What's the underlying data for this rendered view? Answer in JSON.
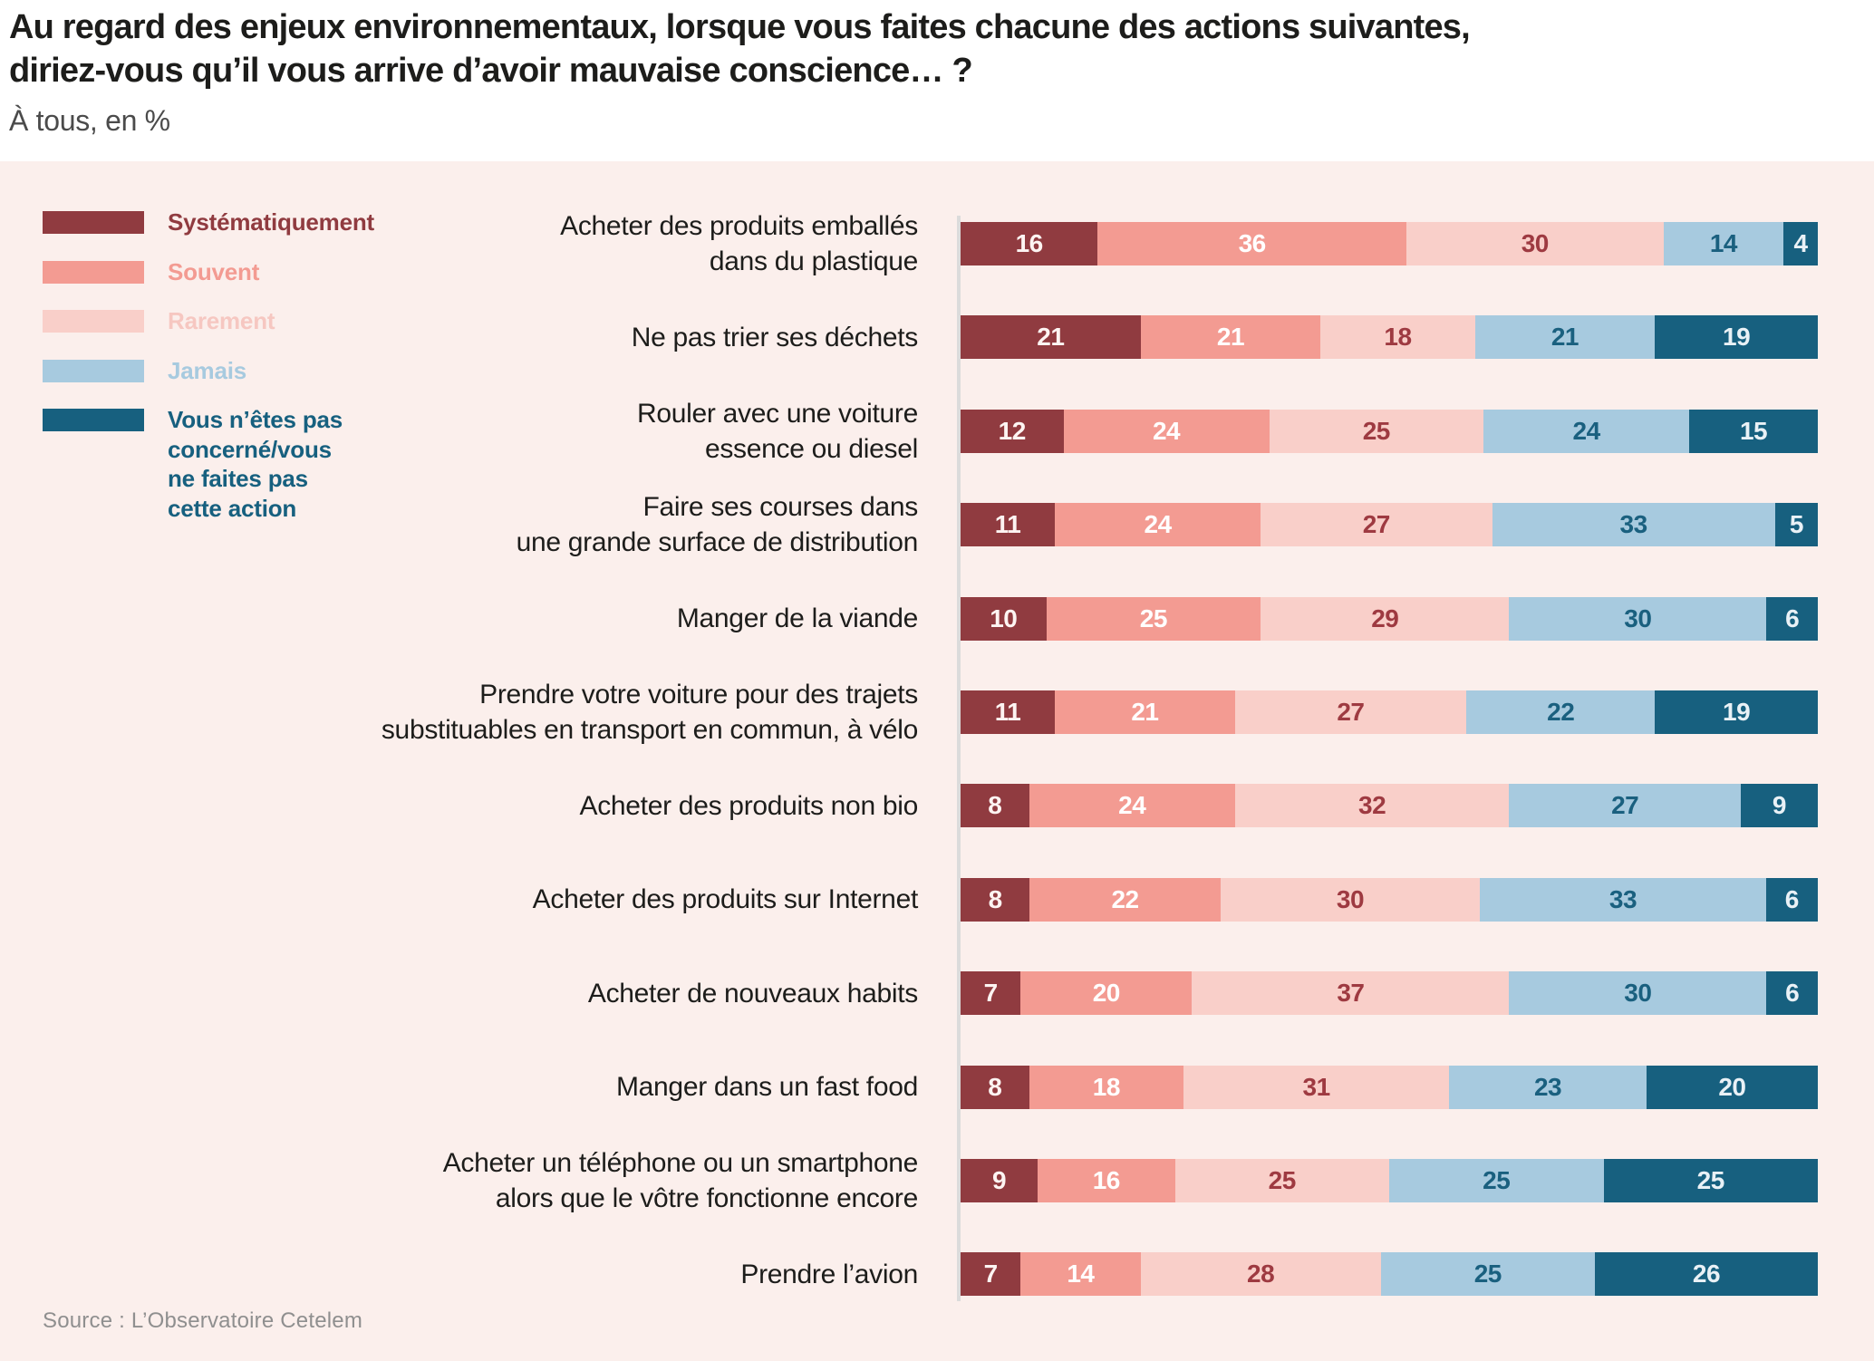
{
  "header": {
    "title_line1": "Au regard des enjeux environnementaux, lorsque vous faites chacune des actions suivantes,",
    "title_line2": "diriez-vous qu’il vous arrive d’avoir mauvaise conscience… ?",
    "subtitle": "À tous, en %"
  },
  "colors": {
    "panel_background": "#FBEFEC",
    "axis_line": "#DBDBDB",
    "title_text": "#1d1d1b",
    "subtitle_text": "#4b4b4b",
    "category_text": "#1d1d1b",
    "source_text": "#8F8F8F"
  },
  "chart_data": {
    "type": "bar",
    "orientation": "horizontal",
    "stacked": true,
    "unit": "%",
    "value_range": [
      0,
      100
    ],
    "grid": false,
    "legend_position": "left",
    "legend": [
      {
        "label_lines": [
          "Systématiquement"
        ],
        "color": "#903B40",
        "label_color": "#903B40"
      },
      {
        "label_lines": [
          "Souvent"
        ],
        "color": "#F39B92",
        "label_color": "#F39B92"
      },
      {
        "label_lines": [
          "Rarement"
        ],
        "color": "#F9CFC9",
        "label_color": "#F6C7C1"
      },
      {
        "label_lines": [
          "Jamais"
        ],
        "color": "#A7CADF",
        "label_color": "#A7CADF"
      },
      {
        "label_lines": [
          "Vous n’êtes pas",
          "concerné/vous",
          "ne faites pas",
          "cette action"
        ],
        "color": "#17607F",
        "label_color": "#17607F"
      }
    ],
    "categories": [
      [
        "Acheter des produits emballés",
        "dans du plastique"
      ],
      [
        "Ne pas trier ses déchets"
      ],
      [
        "Rouler avec une voiture",
        "essence ou diesel"
      ],
      [
        "Faire ses courses dans",
        "une grande surface de distribution"
      ],
      [
        "Manger de la viande"
      ],
      [
        "Prendre votre voiture pour des trajets",
        "substituables en transport en commun, à vélo"
      ],
      [
        "Acheter des produits non bio"
      ],
      [
        "Acheter des produits sur Internet"
      ],
      [
        "Acheter de nouveaux habits"
      ],
      [
        "Manger dans un fast food"
      ],
      [
        "Acheter un téléphone ou un smartphone",
        "alors que le vôtre fonctionne encore"
      ],
      [
        "Prendre l’avion"
      ]
    ],
    "series": [
      {
        "name": "Systématiquement",
        "color": "#903B40",
        "text_color": "#FDF4F2",
        "values": [
          16,
          21,
          12,
          11,
          10,
          11,
          8,
          8,
          7,
          8,
          9,
          7
        ]
      },
      {
        "name": "Souvent",
        "color": "#F39B92",
        "text_color": "#FFFFFF",
        "values": [
          36,
          21,
          24,
          24,
          25,
          21,
          24,
          22,
          20,
          18,
          16,
          14
        ]
      },
      {
        "name": "Rarement",
        "color": "#F9CFC9",
        "text_color": "#9E3A41",
        "values": [
          30,
          18,
          25,
          27,
          29,
          27,
          32,
          30,
          37,
          31,
          25,
          28
        ]
      },
      {
        "name": "Jamais",
        "color": "#A7CADF",
        "text_color": "#1A607F",
        "values": [
          14,
          21,
          24,
          33,
          30,
          22,
          27,
          33,
          30,
          23,
          25,
          25
        ]
      },
      {
        "name": "Vous n’êtes pas concerné/vous ne faites pas cette action",
        "color": "#17607F",
        "text_color": "#E9F1F6",
        "values": [
          4,
          19,
          15,
          5,
          6,
          19,
          9,
          6,
          6,
          20,
          25,
          26
        ]
      }
    ]
  },
  "footer": {
    "source": "Source : L’Observatoire Cetelem"
  }
}
